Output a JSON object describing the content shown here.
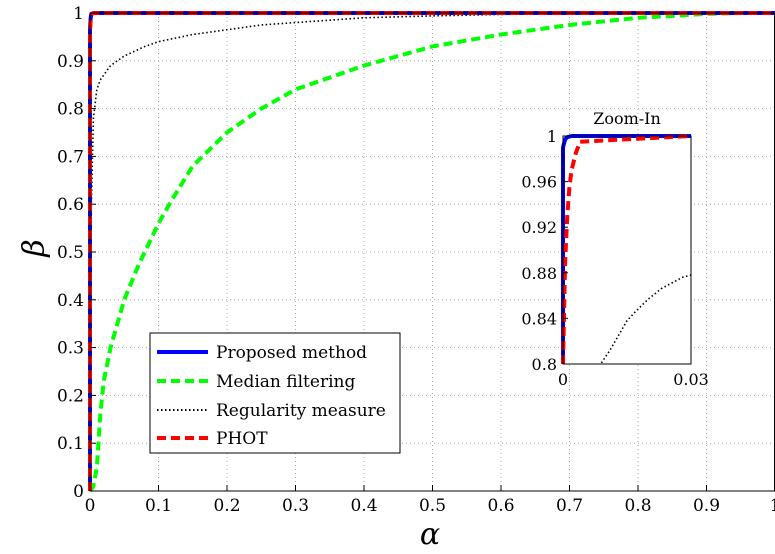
{
  "chart_data": [
    {
      "type": "line",
      "xlabel": "α",
      "ylabel": "β",
      "xlim": [
        0,
        1
      ],
      "ylim": [
        0,
        1
      ],
      "xticks": [
        "0",
        "0.1",
        "0.2",
        "0.3",
        "0.4",
        "0.5",
        "0.6",
        "0.7",
        "0.8",
        "0.9",
        "1"
      ],
      "yticks": [
        "0",
        "0.1",
        "0.2",
        "0.3",
        "0.4",
        "0.5",
        "0.6",
        "0.7",
        "0.8",
        "0.9",
        "1"
      ],
      "grid": true,
      "legend_position": "bottom-left",
      "series": [
        {
          "name": "Proposed method",
          "color": "#0000ff",
          "style": "solid",
          "x": [
            0,
            0,
            0.001,
            0.002,
            0.005,
            1
          ],
          "y": [
            0,
            0.97,
            0.99,
            0.998,
            1,
            1
          ]
        },
        {
          "name": "Median filtering",
          "color": "#00ff00",
          "style": "dashed",
          "x": [
            0,
            0.005,
            0.01,
            0.015,
            0.02,
            0.03,
            0.04,
            0.05,
            0.07,
            0.1,
            0.12,
            0.15,
            0.2,
            0.25,
            0.3,
            0.4,
            0.5,
            0.6,
            0.7,
            0.8,
            0.9,
            0.95,
            1
          ],
          "y": [
            0,
            0.01,
            0.05,
            0.16,
            0.23,
            0.3,
            0.35,
            0.4,
            0.47,
            0.56,
            0.61,
            0.68,
            0.75,
            0.8,
            0.84,
            0.89,
            0.93,
            0.955,
            0.975,
            0.99,
            0.998,
            1,
            1
          ]
        },
        {
          "name": "Regularity measure",
          "color": "#000000",
          "style": "dotted",
          "x": [
            0,
            0.002,
            0.005,
            0.01,
            0.015,
            0.02,
            0.03,
            0.05,
            0.08,
            0.1,
            0.15,
            0.2,
            0.25,
            0.3,
            0.4,
            0.5,
            0.6,
            0.7,
            0.8,
            0.9,
            1
          ],
          "y": [
            0,
            0.6,
            0.78,
            0.84,
            0.86,
            0.87,
            0.89,
            0.91,
            0.93,
            0.94,
            0.955,
            0.965,
            0.975,
            0.98,
            0.99,
            0.994,
            0.997,
            0.999,
            1,
            1,
            1
          ]
        },
        {
          "name": "PHOT",
          "color": "#ff0000",
          "style": "dashed",
          "x": [
            0,
            0,
            0.001,
            0.002,
            0.005,
            1
          ],
          "y": [
            0,
            0.96,
            0.985,
            0.997,
            1,
            1
          ]
        }
      ]
    },
    {
      "type": "line",
      "title": "Zoom-In",
      "xlim": [
        0,
        0.03
      ],
      "ylim": [
        0.8,
        1
      ],
      "xticks": [
        "0",
        "0.03"
      ],
      "yticks": [
        "0.8",
        "0.84",
        "0.88",
        "0.92",
        "0.96",
        "1"
      ],
      "grid": false,
      "series": [
        {
          "ref": "Proposed method",
          "color": "#0000ff",
          "style": "solid",
          "x": [
            0,
            0,
            0.0005,
            0.001,
            0.002,
            0.03
          ],
          "y": [
            0.8,
            0.99,
            0.997,
            0.999,
            1,
            1
          ]
        },
        {
          "ref": "PHOT",
          "color": "#ff0000",
          "style": "dashed",
          "x": [
            0,
            0.0005,
            0.001,
            0.0015,
            0.002,
            0.003,
            0.004,
            0.03
          ],
          "y": [
            0.8,
            0.89,
            0.93,
            0.955,
            0.97,
            0.985,
            0.995,
            1
          ]
        },
        {
          "ref": "Regularity measure",
          "color": "#000000",
          "style": "dotted",
          "x": [
            0.009,
            0.011,
            0.013,
            0.015,
            0.017,
            0.02,
            0.023,
            0.026,
            0.028,
            0.03
          ],
          "y": [
            0.801,
            0.812,
            0.825,
            0.838,
            0.846,
            0.857,
            0.866,
            0.872,
            0.876,
            0.878
          ]
        }
      ]
    }
  ]
}
